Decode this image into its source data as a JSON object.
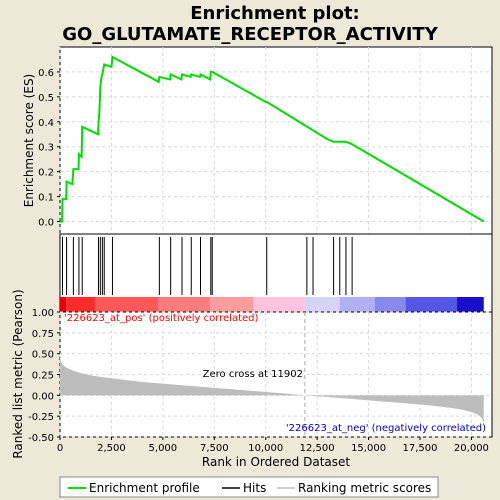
{
  "title_line1": "Enrichment plot:",
  "title_line2": "GO_GLUTAMATE_RECEPTOR_ACTIVITY",
  "colors": {
    "background": "#ece9d8",
    "enrichment_line": "#00dd00",
    "hits": "#000000",
    "metric_fill": "#bdbdbd",
    "pos_label": "#ff0000",
    "neg_label": "#0000cc",
    "zero_cross_line": "#aaaaaa"
  },
  "chart_data": [
    {
      "type": "line",
      "panel": "enrichment-profile",
      "ylabel": "Enrichment score (ES)",
      "xlim": [
        0,
        21000
      ],
      "ylim": [
        -0.05,
        0.7
      ],
      "yticks": [
        "0.0",
        "0.1",
        "0.2",
        "0.3",
        "0.4",
        "0.5",
        "0.6"
      ],
      "ytick_values": [
        0.0,
        0.1,
        0.2,
        0.3,
        0.4,
        0.5,
        0.6
      ],
      "grid": true,
      "series": [
        {
          "x": [
            0,
            100,
            120,
            300,
            320,
            600,
            650,
            900,
            920,
            1050,
            1080,
            1850,
            1870,
            1920,
            1960,
            2020,
            2060,
            2150,
            2500,
            2550,
            4800,
            4830,
            5350,
            5380,
            5900,
            5930,
            6350,
            6380,
            6800,
            6830,
            7300,
            7330,
            7400,
            10000,
            10050,
            13000,
            13300,
            13600,
            13900,
            14200,
            20600
          ],
          "y": [
            0.0,
            0.0,
            0.09,
            0.09,
            0.16,
            0.15,
            0.21,
            0.21,
            0.27,
            0.26,
            0.38,
            0.35,
            0.39,
            0.45,
            0.54,
            0.58,
            0.59,
            0.63,
            0.62,
            0.66,
            0.56,
            0.58,
            0.57,
            0.59,
            0.57,
            0.59,
            0.58,
            0.59,
            0.58,
            0.59,
            0.57,
            0.6,
            0.6,
            0.48,
            0.48,
            0.33,
            0.32,
            0.32,
            0.32,
            0.31,
            0.0
          ]
        }
      ]
    },
    {
      "type": "hits",
      "panel": "hits",
      "hits": [
        120,
        320,
        650,
        920,
        1080,
        1870,
        1960,
        2060,
        2150,
        2550,
        4830,
        5380,
        5930,
        6380,
        6830,
        7330,
        7400,
        10050,
        12000,
        12300,
        13300,
        13600,
        13900,
        14200
      ]
    },
    {
      "type": "area",
      "panel": "ranked-list-metric",
      "ylabel": "Ranked list metric (Pearson)",
      "xlabel": "Rank in Ordered Dataset",
      "xlim": [
        0,
        21000
      ],
      "ylim": [
        -0.5,
        1.0
      ],
      "xticks": [
        "0",
        "2,500",
        "5,000",
        "7,500",
        "10,000",
        "12,500",
        "15,000",
        "17,500",
        "20,000"
      ],
      "xtick_values": [
        0,
        2500,
        5000,
        7500,
        10000,
        12500,
        15000,
        17500,
        20000
      ],
      "yticks": [
        "-0.50",
        "-0.25",
        "0.00",
        "0.25",
        "0.50",
        "0.75",
        "1.00"
      ],
      "ytick_values": [
        -0.5,
        -0.25,
        0.0,
        0.25,
        0.5,
        0.75,
        1.0
      ],
      "x": [
        0,
        30,
        100,
        200,
        400,
        700,
        1000,
        1500,
        2000,
        3000,
        4000,
        5000,
        6000,
        7000,
        8000,
        9000,
        10000,
        11000,
        11902,
        13000,
        14000,
        15000,
        16000,
        17000,
        18000,
        19000,
        19500,
        20000,
        20300,
        20500,
        20600
      ],
      "y": [
        0.52,
        0.42,
        0.38,
        0.35,
        0.32,
        0.29,
        0.27,
        0.24,
        0.22,
        0.19,
        0.16,
        0.14,
        0.12,
        0.1,
        0.08,
        0.06,
        0.04,
        0.02,
        0.0,
        -0.02,
        -0.04,
        -0.06,
        -0.08,
        -0.1,
        -0.12,
        -0.15,
        -0.17,
        -0.2,
        -0.23,
        -0.27,
        -0.33
      ],
      "zero_cross_x": 11902,
      "pos_label": "'226623_at_pos' (positively correlated)",
      "neg_label": "'226623_at_neg' (negatively correlated)",
      "zero_cross_label": "Zero cross at 11902"
    }
  ],
  "gradient_bar": [
    {
      "from": 0,
      "to": 300,
      "color": "#ee0000"
    },
    {
      "from": 300,
      "to": 1700,
      "color": "#ff2a2a"
    },
    {
      "from": 1700,
      "to": 4800,
      "color": "#ff5858"
    },
    {
      "from": 4800,
      "to": 7300,
      "color": "#ff7c7c"
    },
    {
      "from": 7300,
      "to": 9400,
      "color": "#ff9c9c"
    },
    {
      "from": 9400,
      "to": 11900,
      "color": "#ffc2e0"
    },
    {
      "from": 11900,
      "to": 13600,
      "color": "#d4d4f8"
    },
    {
      "from": 13600,
      "to": 15300,
      "color": "#b0b0f4"
    },
    {
      "from": 15300,
      "to": 16800,
      "color": "#8888ee"
    },
    {
      "from": 16800,
      "to": 19300,
      "color": "#5555e6"
    },
    {
      "from": 19300,
      "to": 20600,
      "color": "#1a10cc"
    }
  ],
  "legend": [
    {
      "label": "Enrichment profile",
      "kind": "line",
      "color": "#00dd00"
    },
    {
      "label": "Hits",
      "kind": "line",
      "color": "#000000"
    },
    {
      "label": "Ranking metric scores",
      "kind": "line",
      "color": "#bdbdbd"
    }
  ]
}
